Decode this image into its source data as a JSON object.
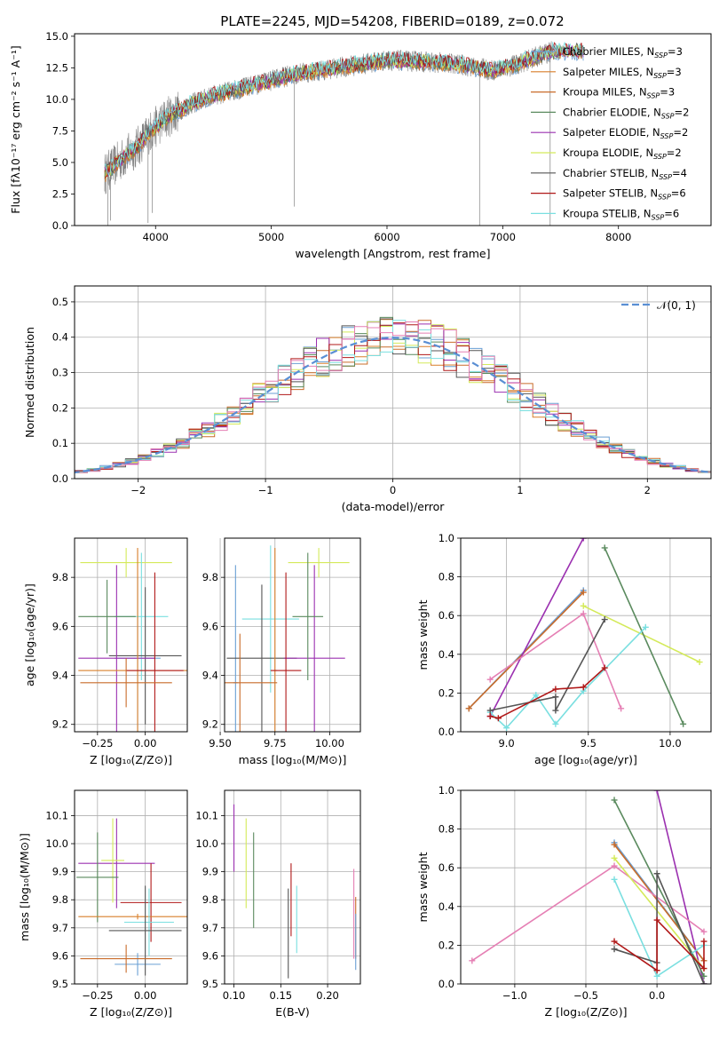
{
  "figure": {
    "title": "PLATE=2245, MJD=54208, FIBERID=0189, z=0.072"
  },
  "colors": {
    "data": "#808080",
    "series": [
      "#1f77b4",
      "#ff7f0e",
      "#d87f2a",
      "#4e8154",
      "#a03ab0",
      "#d4e157",
      "#4d4d4d",
      "#b00e0e",
      "#7fdde0"
    ],
    "model_colors": [
      "#6a9fd4",
      "#d87f2a",
      "#c96c2a",
      "#5a8a5e",
      "#9b30b0",
      "#d4ea5a",
      "#555555",
      "#b01818",
      "#7adfe0"
    ],
    "extra_pink": "#e57fb4",
    "normal_curve": "#5a8fd4"
  },
  "chart_data": [
    {
      "id": "spectrum",
      "type": "line",
      "title": "",
      "xlabel": "wavelength [Angstrom, rest frame]",
      "ylabel": "Flux [fλ10⁻¹⁷ erg cm⁻² s⁻¹ A⁻¹]",
      "xlim": [
        3300,
        8800
      ],
      "ylim": [
        0,
        15.2
      ],
      "xticks": [
        4000,
        5000,
        6000,
        7000,
        8000
      ],
      "yticks": [
        0.0,
        2.5,
        5.0,
        7.5,
        10.0,
        12.5,
        15.0
      ],
      "continuum": {
        "x": [
          3550,
          3700,
          3850,
          3950,
          4100,
          4300,
          4500,
          4800,
          5000,
          5200,
          5500,
          5800,
          6000,
          6300,
          6600,
          6900,
          7100,
          7300,
          7420
        ],
        "y": [
          4.0,
          5.2,
          6.3,
          7.4,
          8.6,
          9.6,
          10.3,
          11.0,
          11.5,
          12.0,
          12.4,
          12.8,
          13.1,
          13.0,
          12.8,
          12.3,
          12.7,
          13.4,
          13.8
        ]
      },
      "model_end_x": 7700,
      "legend": [
        {
          "label": "Chabrier MILES, N",
          "sub": "SSP",
          "value": "=3"
        },
        {
          "label": "Salpeter MILES, N",
          "sub": "SSP",
          "value": "=3"
        },
        {
          "label": "Kroupa MILES, N",
          "sub": "SSP",
          "value": "=3"
        },
        {
          "label": "Chabrier ELODIE, N",
          "sub": "SSP",
          "value": "=2"
        },
        {
          "label": "Salpeter ELODIE, N",
          "sub": "SSP",
          "value": "=2"
        },
        {
          "label": "Kroupa ELODIE, N",
          "sub": "SSP",
          "value": "=2"
        },
        {
          "label": "Chabrier STELIB, N",
          "sub": "SSP",
          "value": "=4"
        },
        {
          "label": "Salpeter STELIB, N",
          "sub": "SSP",
          "value": "=6"
        },
        {
          "label": "Kroupa STELIB, N",
          "sub": "SSP",
          "value": "=6"
        }
      ],
      "legend_placement": "right"
    },
    {
      "id": "residuals",
      "type": "histogram",
      "xlabel": "(data-model)/error",
      "ylabel": "Normed distribution",
      "xlim": [
        -2.5,
        2.5
      ],
      "ylim": [
        0,
        0.545
      ],
      "xticks": [
        -2,
        -1,
        0,
        1,
        2
      ],
      "yticks": [
        0.0,
        0.1,
        0.2,
        0.3,
        0.4,
        0.5
      ],
      "bin_width": 0.1,
      "normal_label": "𝒩(0, 1)",
      "grid": true,
      "legend_placement": "top-right"
    },
    {
      "id": "z_age",
      "type": "errorbar",
      "xlabel": "Z [log₁₀(Z/Z⊙)]",
      "ylabel": "age  [log₁₀(age/yr)]",
      "xlim": [
        -0.37,
        0.22
      ],
      "ylim": [
        9.17,
        9.96
      ],
      "xticks": [
        -0.25,
        0.0
      ],
      "xticklabels": [
        "−0.25",
        "0.00"
      ],
      "yticks": [
        9.2,
        9.4,
        9.6,
        9.8
      ],
      "points": [
        {
          "x": -0.04,
          "xe": 0.12,
          "y": 9.47,
          "ye": 0.33,
          "c": 0
        },
        {
          "x": -0.1,
          "xe": 0.24,
          "y": 9.86,
          "ye": 0.06,
          "c": 5
        },
        {
          "x": -0.02,
          "xe": 0.14,
          "y": 9.64,
          "ye": 0.26,
          "c": 8
        },
        {
          "x": 0.0,
          "xe": 0.19,
          "y": 9.48,
          "ye": 0.28,
          "c": 6
        },
        {
          "x": -0.15,
          "xe": 0.2,
          "y": 9.47,
          "ye": 0.38,
          "c": 4
        },
        {
          "x": -0.2,
          "xe": 0.15,
          "y": 9.64,
          "ye": 0.15,
          "c": 3
        },
        {
          "x": -0.04,
          "xe": 0.31,
          "y": 9.42,
          "ye": 0.5,
          "c": 1
        },
        {
          "x": 0.05,
          "xe": 0.15,
          "y": 9.42,
          "ye": 0.4,
          "c": 7
        },
        {
          "x": -0.1,
          "xe": 0.24,
          "y": 9.37,
          "ye": 0.1,
          "c": 2
        }
      ]
    },
    {
      "id": "mass_age",
      "type": "errorbar",
      "xlabel": "mass [log₁₀(M/M⊙)]",
      "ylabel": "",
      "xlim": [
        9.52,
        10.14
      ],
      "ylim": [
        9.17,
        9.96
      ],
      "xticks": [
        9.5,
        9.75,
        10.0
      ],
      "xticklabels": [
        "9.50",
        "9.75",
        "10.00"
      ],
      "yticks": [
        9.2,
        9.4,
        9.6,
        9.8
      ],
      "points": [
        {
          "x": 9.57,
          "xe": 0.01,
          "y": 9.37,
          "ye": 0.48,
          "c": 0
        },
        {
          "x": 9.95,
          "xe": 0.14,
          "y": 9.86,
          "ye": 0.06,
          "c": 5
        },
        {
          "x": 9.73,
          "xe": 0.13,
          "y": 9.63,
          "ye": 0.3,
          "c": 8
        },
        {
          "x": 9.69,
          "xe": 0.16,
          "y": 9.47,
          "ye": 0.3,
          "c": 6
        },
        {
          "x": 9.93,
          "xe": 0.14,
          "y": 9.47,
          "ye": 0.38,
          "c": 4
        },
        {
          "x": 9.9,
          "xe": 0.07,
          "y": 9.64,
          "ye": 0.26,
          "c": 3
        },
        {
          "x": 9.75,
          "xe": 0.01,
          "y": 9.42,
          "ye": 0.5,
          "c": 1
        },
        {
          "x": 9.8,
          "xe": 0.07,
          "y": 9.42,
          "ye": 0.4,
          "c": 7
        },
        {
          "x": 9.59,
          "xe": 0.17,
          "y": 9.37,
          "ye": 0.2,
          "c": 2
        }
      ]
    },
    {
      "id": "weight_age",
      "type": "line",
      "xlabel": "age  [log₁₀(age/yr)]",
      "ylabel": "mass weight",
      "xlim": [
        8.72,
        10.25
      ],
      "ylim": [
        0,
        1.0
      ],
      "xticks": [
        9.0,
        9.5,
        10.0
      ],
      "yticks": [
        0.0,
        0.2,
        0.4,
        0.6,
        0.8,
        1.0
      ],
      "series": [
        {
          "c": 0,
          "x": [
            8.77,
            9.47
          ],
          "y": [
            0.12,
            0.73
          ]
        },
        {
          "c": 2,
          "x": [
            8.77,
            9.47
          ],
          "y": [
            0.12,
            0.72
          ]
        },
        {
          "c": 4,
          "x": [
            8.9,
            9.47
          ],
          "y": [
            0.08,
            1.0
          ]
        },
        {
          "c": "pink",
          "x": [
            8.9,
            9.47,
            9.7
          ],
          "y": [
            0.27,
            0.61,
            0.12
          ]
        },
        {
          "c": 5,
          "x": [
            9.47,
            10.18
          ],
          "y": [
            0.65,
            0.36
          ]
        },
        {
          "c": 3,
          "x": [
            9.6,
            10.08
          ],
          "y": [
            0.95,
            0.04
          ]
        },
        {
          "c": 8,
          "x": [
            8.9,
            9.0,
            9.18,
            9.3,
            9.47,
            9.85
          ],
          "y": [
            0.1,
            0.02,
            0.19,
            0.04,
            0.21,
            0.54
          ]
        },
        {
          "c": 6,
          "x": [
            8.9,
            9.3,
            9.3,
            9.6
          ],
          "y": [
            0.11,
            0.18,
            0.11,
            0.58
          ]
        },
        {
          "c": 7,
          "x": [
            8.9,
            8.95,
            9.3,
            9.47,
            9.6
          ],
          "y": [
            0.08,
            0.07,
            0.22,
            0.23,
            0.33
          ]
        }
      ]
    },
    {
      "id": "z_mass",
      "type": "errorbar",
      "xlabel": "Z [log₁₀(Z/Z⊙)]",
      "ylabel": "mass [log₁₀(M/M⊙)]",
      "xlim": [
        -0.37,
        0.22
      ],
      "ylim": [
        9.5,
        10.19
      ],
      "xticks": [
        -0.25,
        0.0
      ],
      "xticklabels": [
        "−0.25",
        "0.00"
      ],
      "yticks": [
        9.5,
        9.6,
        9.7,
        9.8,
        9.9,
        10.0,
        10.1
      ],
      "points": [
        {
          "x": -0.04,
          "xe": 0.12,
          "y": 9.57,
          "ye": 0.04,
          "c": 0
        },
        {
          "x": -0.15,
          "xe": 0.2,
          "y": 9.93,
          "ye": 0.16,
          "c": 4
        },
        {
          "x": -0.17,
          "xe": 0.06,
          "y": 9.94,
          "ye": 0.15,
          "c": 5
        },
        {
          "x": -0.25,
          "xe": 0.11,
          "y": 9.88,
          "ye": 0.16,
          "c": 3
        },
        {
          "x": 0.03,
          "xe": 0.16,
          "y": 9.79,
          "ye": 0.14,
          "c": 7
        },
        {
          "x": -0.04,
          "xe": 0.31,
          "y": 9.74,
          "ye": 0.01,
          "c": 1
        },
        {
          "x": 0.02,
          "xe": 0.13,
          "y": 9.72,
          "ye": 0.12,
          "c": 8
        },
        {
          "x": 0.0,
          "xe": 0.19,
          "y": 9.69,
          "ye": 0.16,
          "c": 6
        },
        {
          "x": -0.1,
          "xe": 0.24,
          "y": 9.59,
          "ye": 0.05,
          "c": 2
        }
      ]
    },
    {
      "id": "ebv_mass",
      "type": "errorbar",
      "xlabel": "E(B-V)",
      "ylabel": "",
      "xlim": [
        0.09,
        0.235
      ],
      "ylim": [
        9.5,
        10.19
      ],
      "xticks": [
        0.1,
        0.15,
        0.2
      ],
      "xticklabels": [
        "0.10",
        "0.15",
        "0.20"
      ],
      "yticks": [
        9.5,
        9.6,
        9.7,
        9.8,
        9.9,
        10.0,
        10.1
      ],
      "points": [
        {
          "x": 0.1,
          "xe": 0.0,
          "y": 10.02,
          "ye": 0.12,
          "c": 4
        },
        {
          "x": 0.113,
          "xe": 0.0,
          "y": 9.93,
          "ye": 0.16,
          "c": 5
        },
        {
          "x": 0.121,
          "xe": 0.0,
          "y": 9.87,
          "ye": 0.17,
          "c": 3
        },
        {
          "x": 0.158,
          "xe": 0.0,
          "y": 9.68,
          "ye": 0.16,
          "c": 6
        },
        {
          "x": 0.161,
          "xe": 0.0,
          "y": 9.8,
          "ye": 0.13,
          "c": 7
        },
        {
          "x": 0.167,
          "xe": 0.0,
          "y": 9.73,
          "ye": 0.12,
          "c": 8
        },
        {
          "x": 0.228,
          "xe": 0.0,
          "y": 9.75,
          "ye": 0.16,
          "c": "pink"
        },
        {
          "x": 0.23,
          "xe": 0.0,
          "y": 9.7,
          "ye": 0.11,
          "c": 2
        },
        {
          "x": 0.23,
          "xe": 0.0,
          "y": 9.65,
          "ye": 0.1,
          "c": 0
        }
      ]
    },
    {
      "id": "weight_z",
      "type": "line",
      "xlabel": "Z [log₁₀(Z/Z⊙)]",
      "ylabel": "mass weight",
      "xlim": [
        -1.38,
        0.38
      ],
      "ylim": [
        0,
        1.0
      ],
      "xticks": [
        -1.0,
        -0.5,
        0.0
      ],
      "xticklabels": [
        "−1.0",
        "−0.5",
        "0.0"
      ],
      "yticks": [
        0.0,
        0.2,
        0.4,
        0.6,
        0.8,
        1.0
      ],
      "series": [
        {
          "c": 0,
          "x": [
            -0.3,
            0.33
          ],
          "y": [
            0.73,
            0.12
          ]
        },
        {
          "c": 2,
          "x": [
            -0.3,
            0.33
          ],
          "y": [
            0.72,
            0.12
          ]
        },
        {
          "c": 4,
          "x": [
            0.0,
            0.33
          ],
          "y": [
            1.0,
            0.0
          ]
        },
        {
          "c": "pink",
          "x": [
            -1.3,
            -0.3,
            0.33
          ],
          "y": [
            0.12,
            0.61,
            0.27
          ]
        },
        {
          "c": 5,
          "x": [
            -0.3,
            0.33
          ],
          "y": [
            0.65,
            0.08
          ]
        },
        {
          "c": 3,
          "x": [
            -0.3,
            0.33
          ],
          "y": [
            0.95,
            0.04
          ]
        },
        {
          "c": 8,
          "x": [
            -0.3,
            0.0,
            0.33
          ],
          "y": [
            0.54,
            0.04,
            0.2
          ]
        },
        {
          "c": 6,
          "x": [
            -0.3,
            0.0,
            0.0,
            0.33
          ],
          "y": [
            0.18,
            0.11,
            0.57,
            0.0
          ]
        },
        {
          "c": 7,
          "x": [
            -0.3,
            0.0,
            0.0,
            0.33,
            0.33
          ],
          "y": [
            0.22,
            0.07,
            0.33,
            0.08,
            0.22
          ]
        }
      ]
    }
  ]
}
